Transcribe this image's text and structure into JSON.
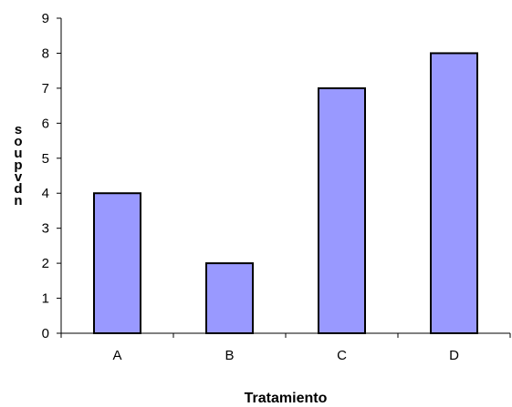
{
  "chart_data": {
    "type": "bar",
    "categories": [
      "A",
      "B",
      "C",
      "D"
    ],
    "values": [
      4,
      2,
      7,
      8
    ],
    "title": "",
    "xlabel": "Tratamiento",
    "ylabel": "soupvdn",
    "ylim": [
      0,
      9
    ],
    "yticks": [
      0,
      1,
      2,
      3,
      4,
      5,
      6,
      7,
      8,
      9
    ],
    "grid": false,
    "legend": "none",
    "bar_color": "#9999ff",
    "bar_edge_color": "#000000"
  }
}
